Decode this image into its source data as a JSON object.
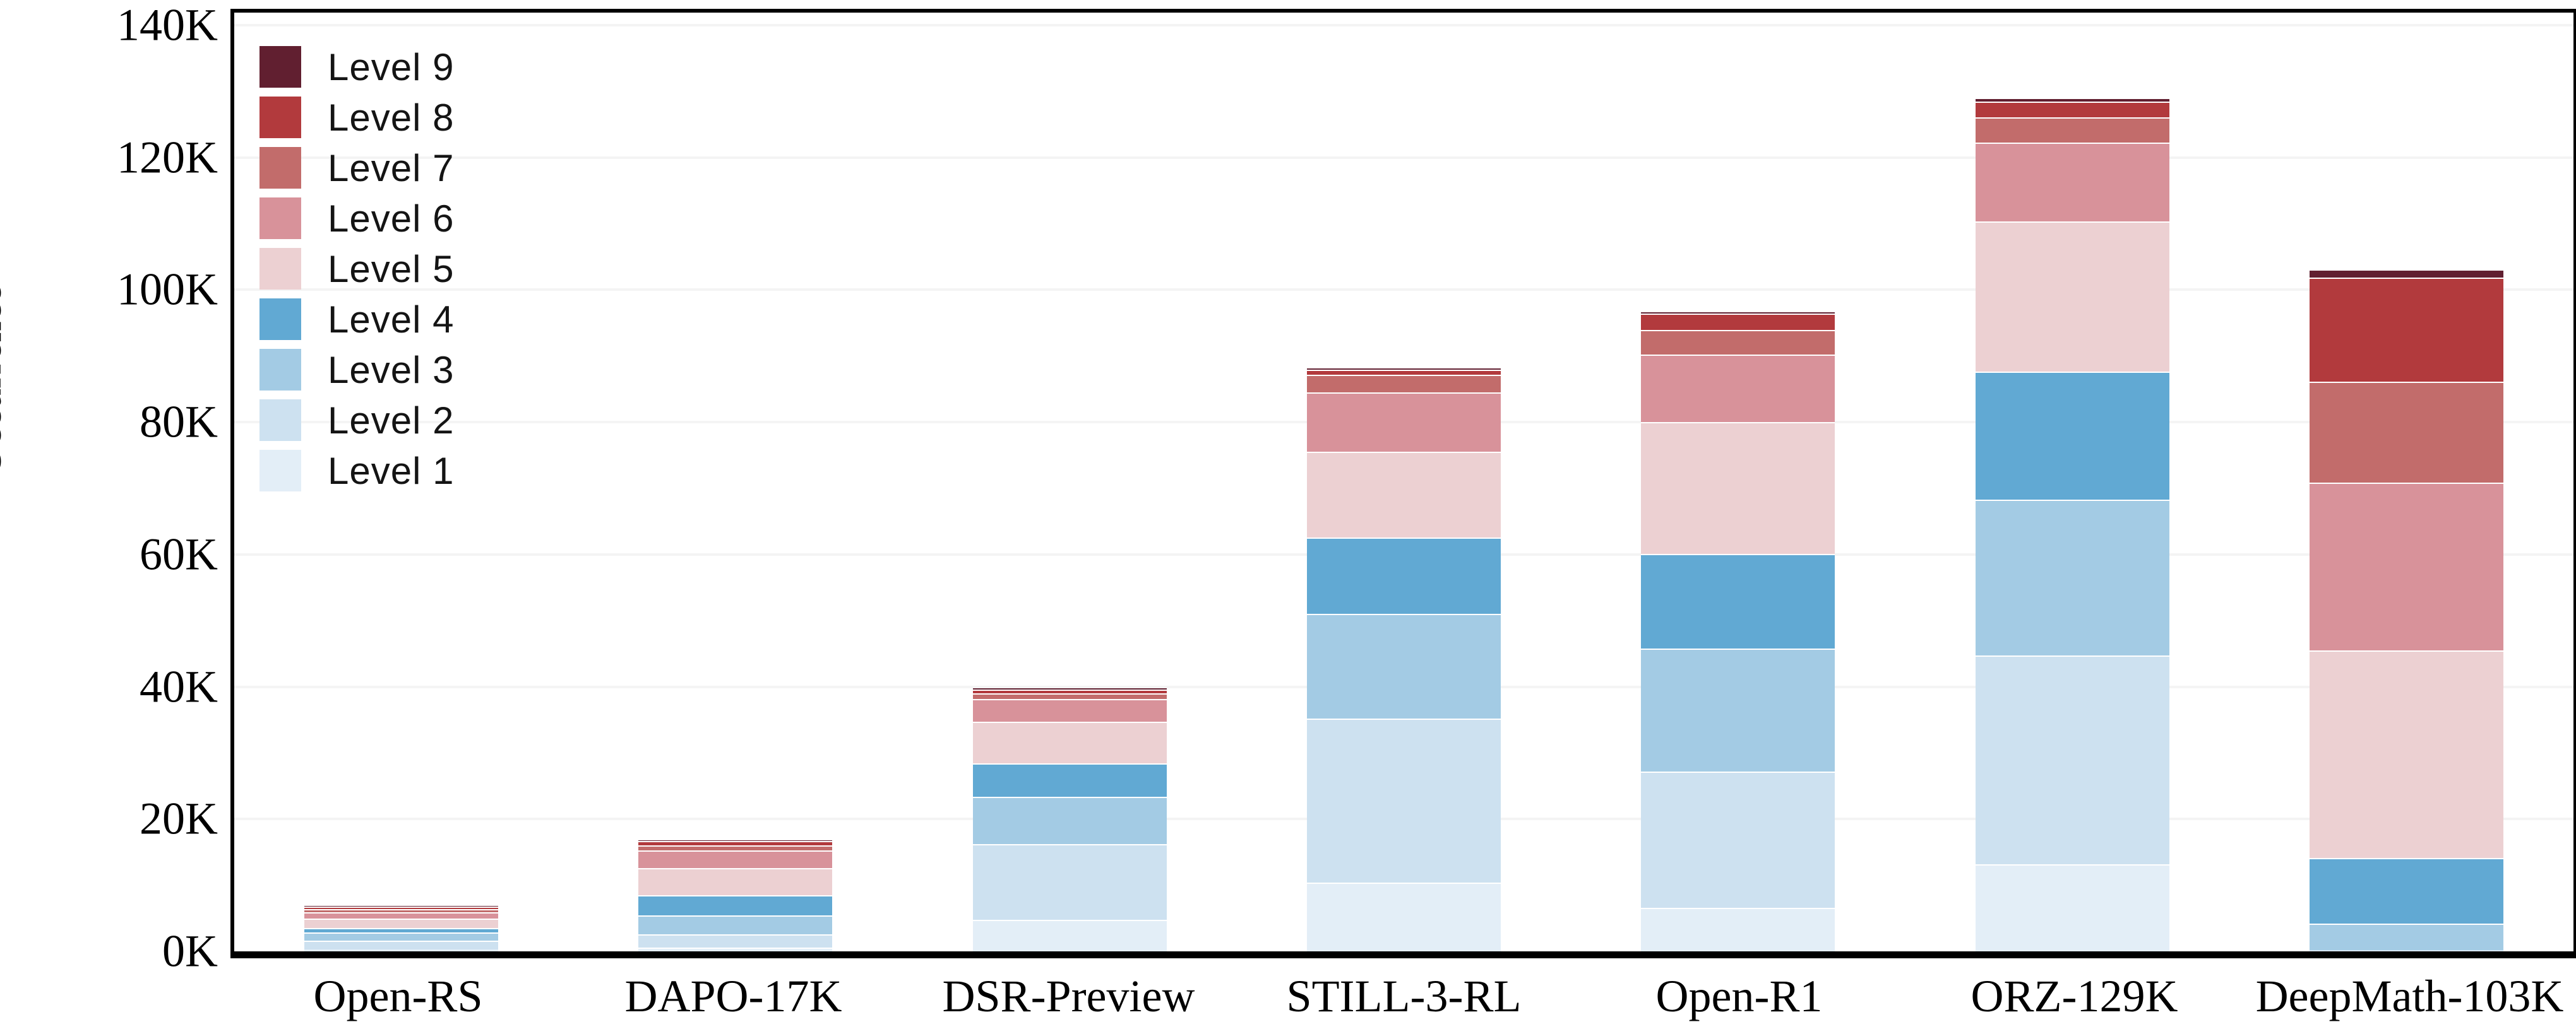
{
  "chart": {
    "ylabel": "Occurrence",
    "y_ticks": [
      "0K",
      "20K",
      "40K",
      "60K",
      "80K",
      "100K",
      "120K",
      "140K"
    ]
  },
  "chart_data": {
    "type": "bar",
    "subtype": "stacked-vertical",
    "title": "",
    "xlabel": "",
    "ylabel": "Occurrence",
    "unit": "thousands (K)",
    "ylim": [
      0,
      140
    ],
    "grid": "horizontal gridlines every 20K, light gray",
    "legend_position": "upper-left inside plot, Level 9 at top, no border",
    "categories": [
      "Open-RS",
      "DAPO-17K",
      "DSR-Preview",
      "STILL-3-RL",
      "Open-R1",
      "ORZ-129K",
      "DeepMath-103K"
    ],
    "series": [
      {
        "name": "Level 1",
        "color": "#e3eef7",
        "values_k": [
          0.3,
          0.6,
          4.8,
          10.4,
          6.6,
          13.2,
          0.05
        ]
      },
      {
        "name": "Level 2",
        "color": "#cde1f0",
        "values_k": [
          1.3,
          2.0,
          11.4,
          24.8,
          20.6,
          31.5,
          0.15
        ]
      },
      {
        "name": "Level 3",
        "color": "#a3cbe4",
        "values_k": [
          1.25,
          2.8,
          7.2,
          15.8,
          18.6,
          23.6,
          4.0
        ]
      },
      {
        "name": "Level 4",
        "color": "#61a9d3",
        "values_k": [
          0.65,
          3.1,
          5.0,
          11.6,
          14.3,
          19.3,
          9.9
        ]
      },
      {
        "name": "Level 5",
        "color": "#ecd0d2",
        "values_k": [
          1.45,
          4.1,
          6.3,
          12.9,
          19.9,
          22.7,
          31.4
        ]
      },
      {
        "name": "Level 6",
        "color": "#d8929a",
        "values_k": [
          1.0,
          2.7,
          3.5,
          9.0,
          10.2,
          12.0,
          25.4
        ]
      },
      {
        "name": "Level 7",
        "color": "#c26c6b",
        "values_k": [
          0.4,
          0.7,
          0.8,
          2.7,
          3.7,
          3.8,
          15.2
        ]
      },
      {
        "name": "Level 8",
        "color": "#b23a3d",
        "values_k": [
          0.45,
          0.65,
          0.6,
          0.7,
          2.5,
          2.4,
          15.8
        ]
      },
      {
        "name": "Level 9",
        "color": "#611f30",
        "values_k": [
          0.1,
          0.15,
          0.2,
          0.2,
          0.4,
          0.3,
          1.2
        ]
      }
    ],
    "totals_k": [
      6.9,
      16.8,
      39.8,
      88.1,
      96.8,
      128.8,
      103.1
    ]
  }
}
